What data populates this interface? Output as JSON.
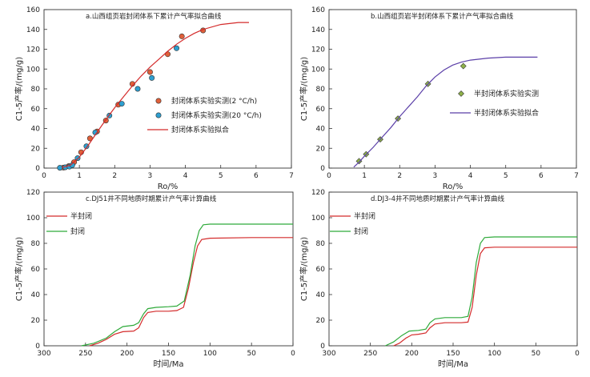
{
  "chart_data": [
    {
      "type": "scatter",
      "title": "a.山西组页岩封闭体系下累计产气率拟合曲线",
      "xlabel": "Ro/%",
      "ylabel": "C1-5产率/(mg/g)",
      "xlim": [
        0,
        7
      ],
      "ylim": [
        0,
        160
      ],
      "xticks": [
        0,
        1,
        2,
        3,
        4,
        5,
        6,
        7
      ],
      "yticks": [
        0,
        20,
        40,
        60,
        80,
        100,
        120,
        140,
        160
      ],
      "legend_position": "right",
      "series": [
        {
          "name": "封闭体系实验实测(2 °C/h)",
          "kind": "points",
          "marker": "circle",
          "color": "#e0603a",
          "points": [
            [
              0.55,
              0.5
            ],
            [
              0.7,
              2
            ],
            [
              0.85,
              6
            ],
            [
              1.05,
              16
            ],
            [
              1.3,
              30
            ],
            [
              1.5,
              37
            ],
            [
              1.75,
              48
            ],
            [
              2.1,
              64
            ],
            [
              2.5,
              85
            ],
            [
              3.0,
              97
            ],
            [
              3.5,
              115
            ],
            [
              3.9,
              133
            ],
            [
              4.5,
              139
            ]
          ]
        },
        {
          "name": "封闭体系实验实测(20 °C/h)",
          "kind": "points",
          "marker": "circle",
          "color": "#2e9fd0",
          "points": [
            [
              0.45,
              0.3
            ],
            [
              0.6,
              0.8
            ],
            [
              0.72,
              1.5
            ],
            [
              0.8,
              3
            ],
            [
              0.95,
              10
            ],
            [
              1.2,
              22
            ],
            [
              1.45,
              36
            ],
            [
              1.85,
              53
            ],
            [
              2.2,
              65
            ],
            [
              2.65,
              80
            ],
            [
              3.05,
              91
            ],
            [
              3.75,
              121
            ]
          ]
        },
        {
          "name": "封闭体系实验拟合",
          "kind": "line",
          "color": "#d42b2b",
          "points": [
            [
              0.5,
              0.5
            ],
            [
              0.75,
              3
            ],
            [
              1.0,
              11
            ],
            [
              1.25,
              23
            ],
            [
              1.5,
              36
            ],
            [
              1.75,
              49
            ],
            [
              2.0,
              61
            ],
            [
              2.25,
              72
            ],
            [
              2.5,
              83
            ],
            [
              2.75,
              93
            ],
            [
              3.0,
              102
            ],
            [
              3.25,
              110
            ],
            [
              3.5,
              118
            ],
            [
              3.75,
              125
            ],
            [
              4.0,
              131
            ],
            [
              4.25,
              136
            ],
            [
              4.5,
              140
            ],
            [
              5.0,
              145
            ],
            [
              5.5,
              147
            ],
            [
              5.8,
              147
            ]
          ]
        }
      ]
    },
    {
      "type": "scatter",
      "title": "b.山西组页岩半封闭体系下累计产气率拟合曲线",
      "xlabel": "Ro/%",
      "ylabel": "C1-5产率/(mg/g)",
      "xlim": [
        0,
        7
      ],
      "ylim": [
        0,
        160
      ],
      "xticks": [
        0,
        1,
        2,
        3,
        4,
        5,
        6,
        7
      ],
      "yticks": [
        0,
        20,
        40,
        60,
        80,
        100,
        120,
        140,
        160
      ],
      "legend_position": "right",
      "series": [
        {
          "name": "半封闭体系实验实测",
          "kind": "points",
          "marker": "diamond",
          "color": "#8fb24a",
          "points": [
            [
              0.85,
              7
            ],
            [
              1.05,
              14
            ],
            [
              1.45,
              29
            ],
            [
              1.95,
              50
            ],
            [
              2.8,
              85
            ],
            [
              3.8,
              103
            ]
          ]
        },
        {
          "name": "半封闭体系实验拟合",
          "kind": "line",
          "color": "#5b3fa8",
          "points": [
            [
              0.7,
              1
            ],
            [
              0.85,
              6
            ],
            [
              1.0,
              12
            ],
            [
              1.25,
              21
            ],
            [
              1.5,
              31
            ],
            [
              1.75,
              41
            ],
            [
              2.0,
              52
            ],
            [
              2.25,
              62
            ],
            [
              2.5,
              72
            ],
            [
              2.75,
              83
            ],
            [
              3.0,
              92
            ],
            [
              3.25,
              99
            ],
            [
              3.5,
              104
            ],
            [
              3.75,
              107
            ],
            [
              4.0,
              109
            ],
            [
              4.5,
              111
            ],
            [
              5.0,
              112
            ],
            [
              5.5,
              112
            ],
            [
              5.9,
              112
            ]
          ]
        }
      ]
    },
    {
      "type": "line",
      "title": "c.DJ51井不同地质时期累计产气率计算曲线",
      "xlabel": "时间/Ma",
      "ylabel": "C1-5产率/(mg/g)",
      "xlim": [
        300,
        0
      ],
      "ylim": [
        0,
        120
      ],
      "xticks": [
        300,
        250,
        200,
        150,
        100,
        50,
        0
      ],
      "yticks": [
        0,
        20,
        40,
        60,
        80,
        100,
        120
      ],
      "legend_position": "top-left",
      "series": [
        {
          "name": "半封闭",
          "kind": "line",
          "color": "#d42b2b",
          "points": [
            [
              245,
              0
            ],
            [
              235,
              2
            ],
            [
              225,
              5
            ],
            [
              215,
              9
            ],
            [
              205,
              11
            ],
            [
              192,
              11.5
            ],
            [
              186,
              14
            ],
            [
              180,
              22
            ],
            [
              175,
              26
            ],
            [
              165,
              27
            ],
            [
              150,
              27
            ],
            [
              140,
              27.5
            ],
            [
              132,
              30
            ],
            [
              126,
              45
            ],
            [
              120,
              65
            ],
            [
              115,
              78
            ],
            [
              110,
              83
            ],
            [
              100,
              84
            ],
            [
              50,
              84.5
            ],
            [
              0,
              84.5
            ]
          ]
        },
        {
          "name": "封闭",
          "kind": "line",
          "color": "#2eaa3a",
          "points": [
            [
              255,
              0
            ],
            [
              240,
              2
            ],
            [
              225,
              6
            ],
            [
              215,
              11
            ],
            [
              205,
              15
            ],
            [
              192,
              16
            ],
            [
              186,
              18
            ],
            [
              180,
              25
            ],
            [
              175,
              29
            ],
            [
              165,
              30
            ],
            [
              150,
              30.5
            ],
            [
              140,
              31
            ],
            [
              131,
              35
            ],
            [
              124,
              55
            ],
            [
              118,
              78
            ],
            [
              113,
              90
            ],
            [
              108,
              94.5
            ],
            [
              100,
              95
            ],
            [
              50,
              95
            ],
            [
              0,
              95
            ]
          ]
        }
      ]
    },
    {
      "type": "line",
      "title": "d.DJ3-4井不同地质时期累计产气率计算曲线",
      "xlabel": "时间/Ma",
      "ylabel": "C1-5产率/(mg/g)",
      "xlim": [
        300,
        0
      ],
      "ylim": [
        0,
        120
      ],
      "xticks": [
        300,
        250,
        200,
        150,
        100,
        50,
        0
      ],
      "yticks": [
        0,
        20,
        40,
        60,
        80,
        100,
        120
      ],
      "legend_position": "top-left",
      "series": [
        {
          "name": "半封闭",
          "kind": "line",
          "color": "#d42b2b",
          "points": [
            [
              222,
              0
            ],
            [
              215,
              2
            ],
            [
              207,
              6
            ],
            [
              200,
              8.5
            ],
            [
              192,
              9
            ],
            [
              183,
              10
            ],
            [
              178,
              14
            ],
            [
              172,
              17
            ],
            [
              160,
              18
            ],
            [
              140,
              18
            ],
            [
              132,
              18.5
            ],
            [
              127,
              30
            ],
            [
              122,
              55
            ],
            [
              117,
              72
            ],
            [
              112,
              76.5
            ],
            [
              100,
              77
            ],
            [
              50,
              77
            ],
            [
              0,
              77
            ]
          ]
        },
        {
          "name": "封闭",
          "kind": "line",
          "color": "#2eaa3a",
          "points": [
            [
              232,
              0
            ],
            [
              222,
              3
            ],
            [
              212,
              8
            ],
            [
              203,
              11.5
            ],
            [
              192,
              12
            ],
            [
              183,
              13
            ],
            [
              178,
              18
            ],
            [
              172,
              21
            ],
            [
              160,
              22
            ],
            [
              140,
              22
            ],
            [
              132,
              23
            ],
            [
              127,
              38
            ],
            [
              122,
              65
            ],
            [
              117,
              80
            ],
            [
              112,
              84.5
            ],
            [
              100,
              85
            ],
            [
              50,
              85
            ],
            [
              0,
              85
            ]
          ]
        }
      ]
    }
  ]
}
